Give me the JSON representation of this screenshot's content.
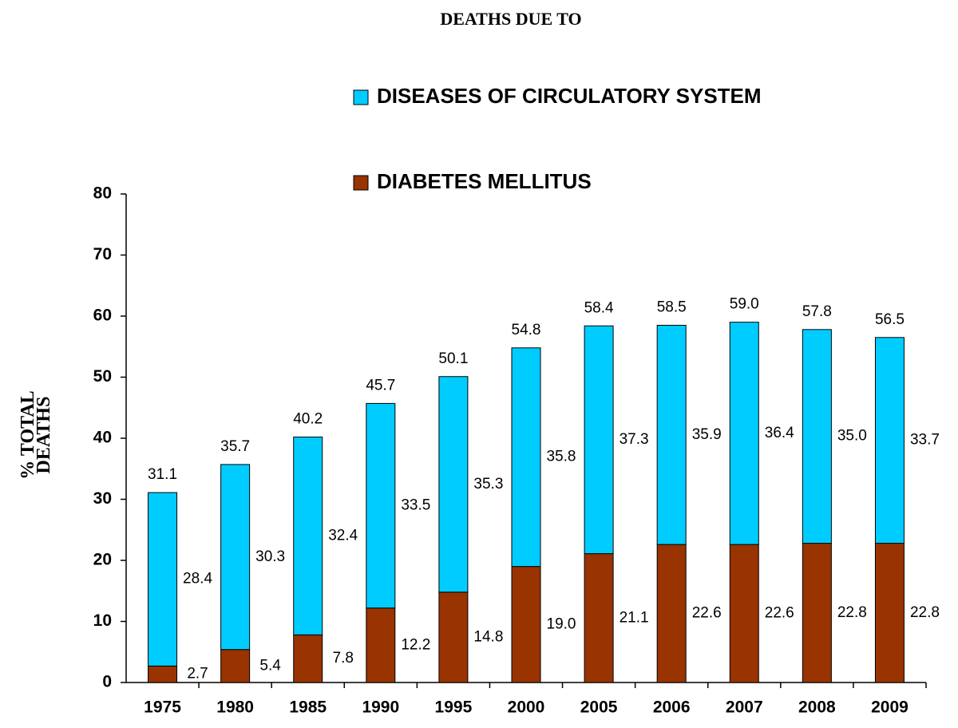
{
  "chart_data": {
    "type": "stacked-bar",
    "title": "DEATHS DUE TO",
    "y_label": "% TOTAL DEATHS",
    "categories": [
      "1975",
      "1980",
      "1985",
      "1990",
      "1995",
      "2000",
      "2005",
      "2006",
      "2007",
      "2008",
      "2009"
    ],
    "series": [
      {
        "name": "DIABETES MELLITUS",
        "color": "#993300",
        "values": [
          2.7,
          5.4,
          7.8,
          12.2,
          14.8,
          19.0,
          21.1,
          22.6,
          22.6,
          22.8,
          22.8
        ],
        "value_labels": [
          "2.7",
          "5.4",
          "7.8",
          "12.2",
          "14.8",
          "19.0",
          "21.1",
          "22.6",
          "22.6",
          "22.8",
          "22.8"
        ]
      },
      {
        "name": "DISEASES OF CIRCULATORY SYSTEM",
        "color": "#00ccff",
        "values": [
          28.4,
          30.3,
          32.4,
          33.5,
          35.3,
          35.8,
          37.3,
          35.9,
          36.4,
          35.0,
          33.7
        ],
        "value_labels": [
          "28.4",
          "30.3",
          "32.4",
          "33.5",
          "35.3",
          "35.8",
          "37.3",
          "35.9",
          "36.4",
          "35.0",
          "33.7"
        ]
      }
    ],
    "totals": [
      31.1,
      35.7,
      40.2,
      45.7,
      50.1,
      54.8,
      58.4,
      58.5,
      59.0,
      57.8,
      56.5
    ],
    "total_labels": [
      "31.1",
      "35.7",
      "40.2",
      "45.7",
      "50.1",
      "54.8",
      "58.4",
      "58.5",
      "59.0",
      "57.8",
      "56.5"
    ],
    "ylim": [
      0,
      80
    ],
    "yticks": [
      0,
      10,
      20,
      30,
      40,
      50,
      60,
      70,
      80
    ],
    "grid": false
  }
}
